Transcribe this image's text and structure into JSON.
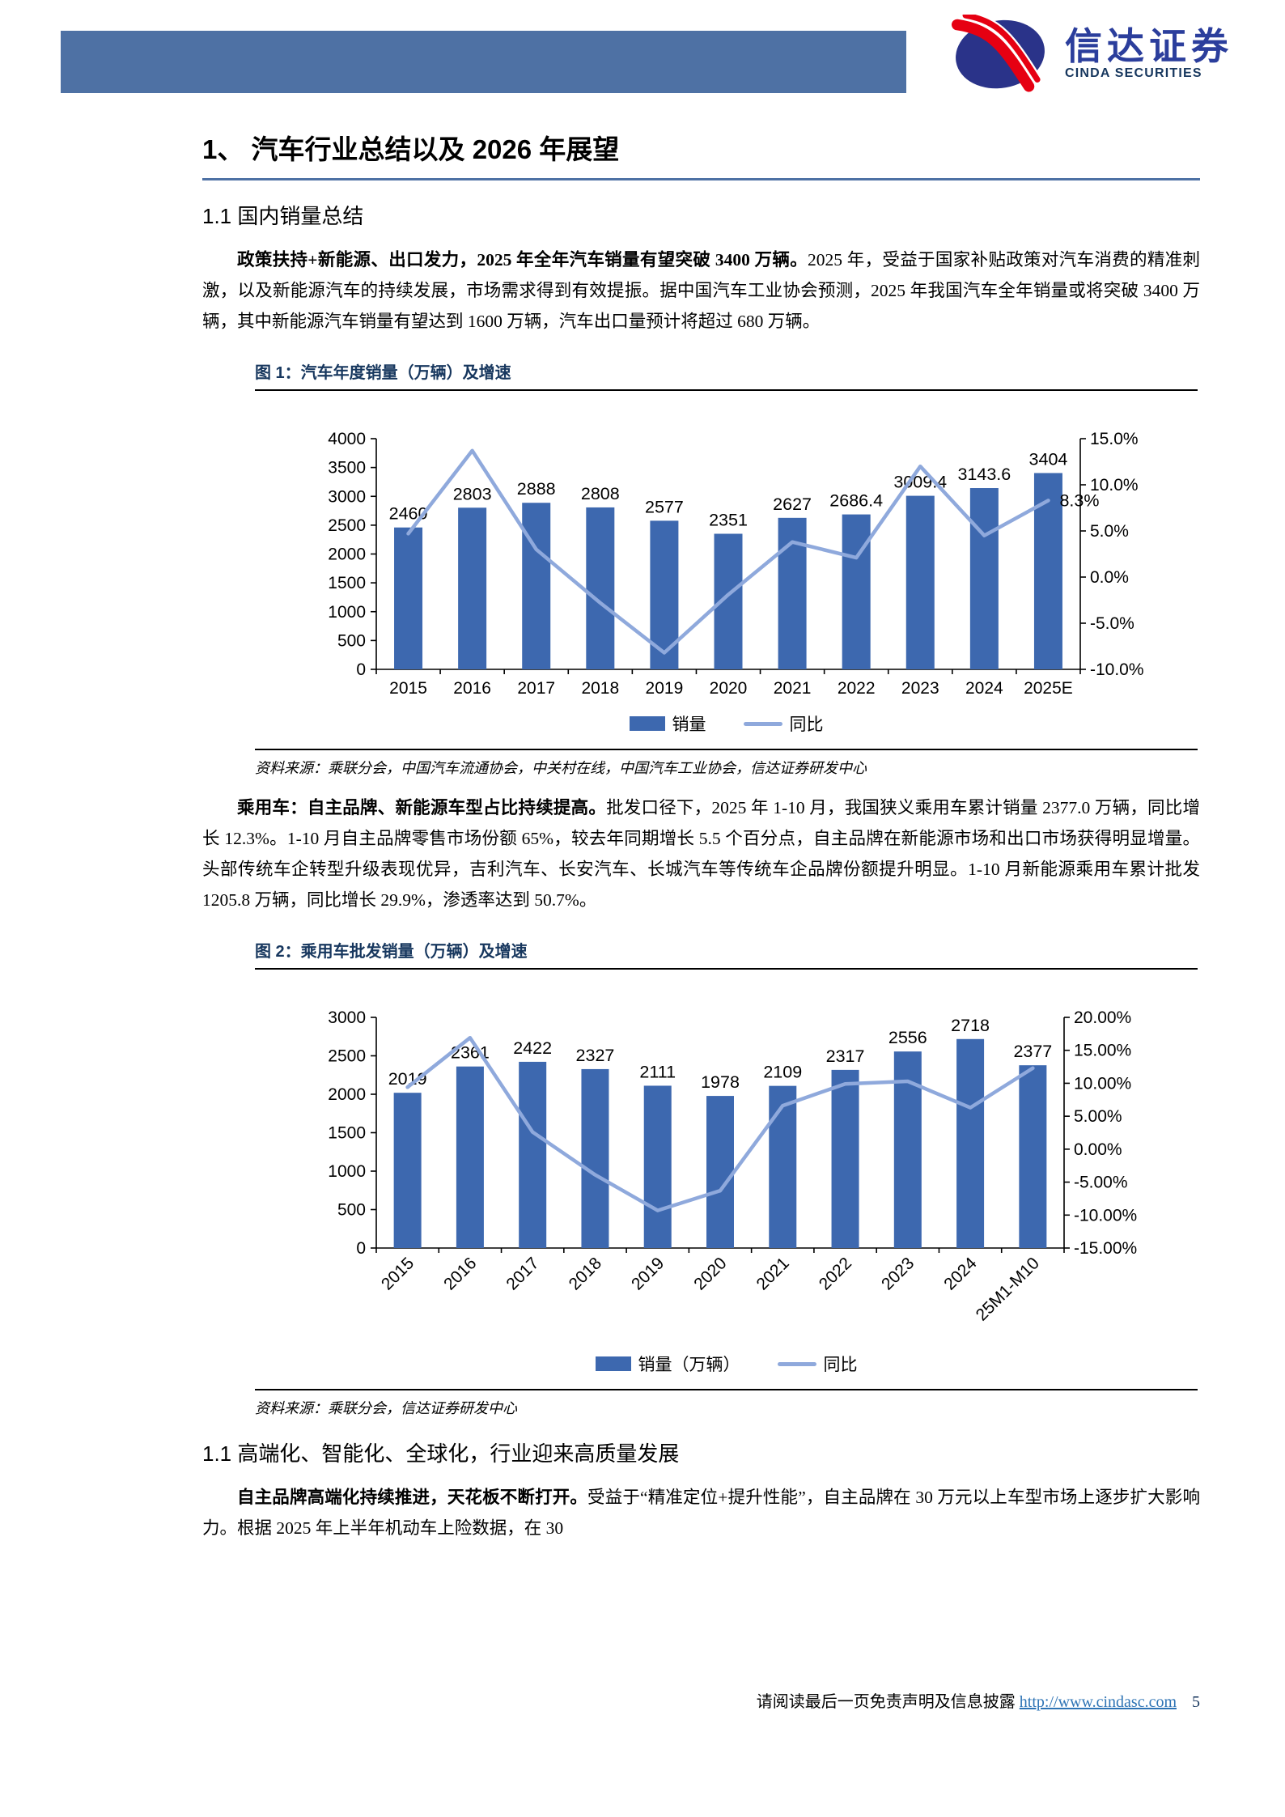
{
  "colors": {
    "band": "#4E71A4",
    "caption": "#17375E",
    "link": "#2E74B5",
    "logo_red": "#E60012",
    "logo_navy": "#2A3389",
    "logo_blue": "#2B3E9C"
  },
  "header": {
    "logo_cn": "信达证券",
    "logo_en": "CINDA SECURITIES"
  },
  "title": "1、 汽车行业总结以及 2026 年展望",
  "sections": {
    "s1": "1.1 国内销量总结",
    "s2": "1.1 高端化、智能化、全球化，行业迎来高质量发展"
  },
  "paragraphs": {
    "p1": {
      "bold": "政策扶持+新能源、出口发力，2025 年全年汽车销量有望突破 3400 万辆。",
      "rest": "2025 年，受益于国家补贴政策对汽车消费的精准刺激，以及新能源汽车的持续发展，市场需求得到有效提振。据中国汽车工业协会预测，2025 年我国汽车全年销量或将突破 3400 万辆，其中新能源汽车销量有望达到 1600 万辆，汽车出口量预计将超过 680 万辆。"
    },
    "p2": {
      "bold": "乘用车：自主品牌、新能源车型占比持续提高。",
      "rest": "批发口径下，2025 年 1-10 月，我国狭义乘用车累计销量 2377.0 万辆，同比增长 12.3%。1-10 月自主品牌零售市场份额 65%，较去年同期增长 5.5 个百分点，自主品牌在新能源市场和出口市场获得明显增量。头部传统车企转型升级表现优异，吉利汽车、长安汽车、长城汽车等传统车企品牌份额提升明显。1-10 月新能源乘用车累计批发 1205.8 万辆，同比增长 29.9%，渗透率达到 50.7%。"
    },
    "p3": {
      "bold": "自主品牌高端化持续推进，天花板不断打开。",
      "rest": "受益于“精准定位+提升性能”，自主品牌在 30 万元以上车型市场上逐步扩大影响力。根据 2025 年上半年机动车上险数据，在 30"
    }
  },
  "figures": [
    {
      "caption": "图 1：汽车年度销量（万辆）及增速",
      "source": "资料来源：乘联分会，中国汽车流通协会，中关村在线，中国汽车工业协会，信达证券研发中心",
      "chart_data": {
        "type": "bar+line combo",
        "title": "汽车年度销量（万辆）及增速",
        "categories": [
          "2015",
          "2016",
          "2017",
          "2018",
          "2019",
          "2020",
          "2021",
          "2022",
          "2023",
          "2024",
          "2025E"
        ],
        "bar_series": {
          "name": "销量",
          "color": "#3D68AF",
          "values": [
            2460,
            2803,
            2888,
            2808,
            2577,
            2351,
            2627,
            2686.4,
            3009.4,
            3143.6,
            3404
          ]
        },
        "line_series": {
          "name": "同比",
          "color": "#8FA9DC",
          "axis": "right",
          "unit": "%",
          "values": [
            4.7,
            13.7,
            3.0,
            -2.8,
            -8.2,
            -1.9,
            3.8,
            2.1,
            12.0,
            4.5,
            8.3
          ]
        },
        "left_axis": {
          "min": 0,
          "max": 4000,
          "step": 500
        },
        "right_axis": {
          "min": -10,
          "max": 15,
          "step": 5,
          "decimals": 1
        },
        "annotation": {
          "text": "8.3%",
          "index": 10
        },
        "legend": [
          "销量",
          "同比"
        ],
        "legend_position": "bottom",
        "grid": false
      }
    },
    {
      "caption": "图 2：乘用车批发销量（万辆）及增速",
      "source": "资料来源：乘联分会，信达证券研发中心",
      "chart_data": {
        "type": "bar+line combo",
        "title": "乘用车批发销量（万辆）及增速",
        "categories": [
          "2015",
          "2016",
          "2017",
          "2018",
          "2019",
          "2020",
          "2021",
          "2022",
          "2023",
          "2024",
          "25M1-M10"
        ],
        "bar_series": {
          "name": "销量（万辆）",
          "color": "#3D68AF",
          "values": [
            2019,
            2361,
            2422,
            2327,
            2111,
            1978,
            2109,
            2317,
            2556,
            2718,
            2377
          ]
        },
        "line_series": {
          "name": "同比",
          "color": "#8FA9DC",
          "axis": "right",
          "unit": "%",
          "values": [
            9.4,
            16.9,
            2.6,
            -3.9,
            -9.3,
            -6.3,
            6.6,
            9.9,
            10.3,
            6.3,
            12.3
          ]
        },
        "left_axis": {
          "min": 0,
          "max": 3000,
          "step": 500
        },
        "right_axis": {
          "min": -15,
          "max": 20,
          "step": 5,
          "decimals": 2
        },
        "legend": [
          "销量（万辆）",
          "同比"
        ],
        "legend_position": "bottom",
        "grid": false
      }
    }
  ],
  "footer": {
    "disclaimer": "请阅读最后一页免责声明及信息披露",
    "link": "http://www.cindasc.com",
    "page": "5"
  }
}
